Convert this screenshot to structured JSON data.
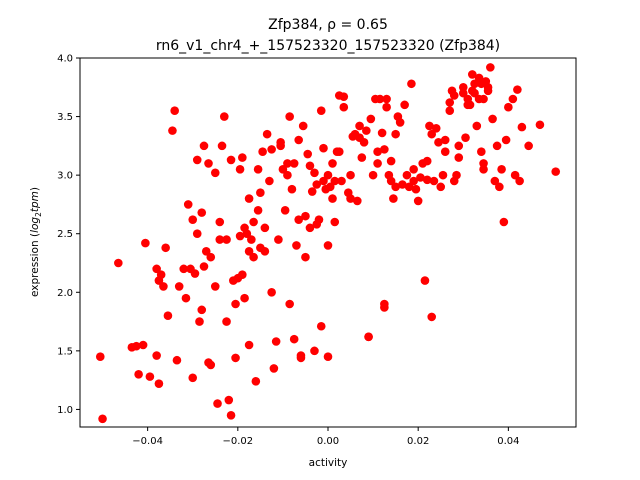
{
  "chart_data": {
    "type": "scatter",
    "title": "Zfp384, ρ = 0.65",
    "subtitle": "rn6_v1_chr4_+_157523320_157523320 (Zfp384)",
    "xlabel": "activity",
    "ylabel_prefix": "expression (",
    "ylabel_math": "log",
    "ylabel_sub": "2",
    "ylabel_math2": "tpm",
    "ylabel_suffix": ")",
    "xlim": [
      -0.055,
      0.055
    ],
    "ylim": [
      0.85,
      4.0
    ],
    "xticks": [
      -0.04,
      -0.02,
      0.0,
      0.02,
      0.04
    ],
    "xtick_labels": [
      "−0.04",
      "−0.02",
      "0.00",
      "0.02",
      "0.04"
    ],
    "yticks": [
      1.0,
      1.5,
      2.0,
      2.5,
      3.0,
      3.5,
      4.0
    ],
    "ytick_labels": [
      "1.0",
      "1.5",
      "2.0",
      "2.5",
      "3.0",
      "3.5",
      "4.0"
    ],
    "grid": false,
    "legend": "none",
    "marker_color": "#ff0000",
    "points": [
      [
        -0.0505,
        1.45
      ],
      [
        -0.05,
        0.92
      ],
      [
        -0.0465,
        2.25
      ],
      [
        -0.0435,
        1.53
      ],
      [
        -0.0425,
        1.54
      ],
      [
        -0.042,
        1.3
      ],
      [
        -0.041,
        1.55
      ],
      [
        -0.0405,
        2.42
      ],
      [
        -0.0395,
        1.28
      ],
      [
        -0.038,
        1.46
      ],
      [
        -0.0375,
        1.22
      ],
      [
        -0.038,
        2.2
      ],
      [
        -0.0375,
        2.1
      ],
      [
        -0.037,
        2.15
      ],
      [
        -0.0365,
        2.05
      ],
      [
        -0.036,
        2.38
      ],
      [
        -0.0355,
        1.8
      ],
      [
        -0.0345,
        3.38
      ],
      [
        -0.034,
        3.55
      ],
      [
        -0.0335,
        1.42
      ],
      [
        -0.033,
        2.05
      ],
      [
        -0.032,
        2.2
      ],
      [
        -0.0315,
        1.95
      ],
      [
        -0.031,
        2.75
      ],
      [
        -0.0305,
        2.2
      ],
      [
        -0.03,
        1.27
      ],
      [
        -0.03,
        2.62
      ],
      [
        -0.0295,
        2.16
      ],
      [
        -0.029,
        2.5
      ],
      [
        -0.029,
        3.13
      ],
      [
        -0.0285,
        1.75
      ],
      [
        -0.028,
        2.68
      ],
      [
        -0.028,
        1.85
      ],
      [
        -0.0275,
        2.22
      ],
      [
        -0.0275,
        3.25
      ],
      [
        -0.027,
        2.35
      ],
      [
        -0.0265,
        1.4
      ],
      [
        -0.0265,
        3.1
      ],
      [
        -0.026,
        1.38
      ],
      [
        -0.026,
        2.3
      ],
      [
        -0.025,
        2.05
      ],
      [
        -0.025,
        3.02
      ],
      [
        -0.0245,
        1.05
      ],
      [
        -0.024,
        2.45
      ],
      [
        -0.024,
        2.6
      ],
      [
        -0.0235,
        3.25
      ],
      [
        -0.023,
        3.5
      ],
      [
        -0.0225,
        1.75
      ],
      [
        -0.0225,
        2.45
      ],
      [
        -0.022,
        1.08
      ],
      [
        -0.0215,
        0.95
      ],
      [
        -0.0215,
        3.13
      ],
      [
        -0.021,
        2.1
      ],
      [
        -0.0205,
        1.44
      ],
      [
        -0.0205,
        1.9
      ],
      [
        -0.02,
        2.12
      ],
      [
        -0.0195,
        2.48
      ],
      [
        -0.0195,
        3.05
      ],
      [
        -0.019,
        3.15
      ],
      [
        -0.019,
        2.15
      ],
      [
        -0.0185,
        1.95
      ],
      [
        -0.0185,
        2.55
      ],
      [
        -0.018,
        2.5
      ],
      [
        -0.0175,
        2.35
      ],
      [
        -0.0175,
        2.8
      ],
      [
        -0.0175,
        1.55
      ],
      [
        -0.017,
        2.45
      ],
      [
        -0.0165,
        2.6
      ],
      [
        -0.0165,
        2.3
      ],
      [
        -0.016,
        1.24
      ],
      [
        -0.0155,
        2.7
      ],
      [
        -0.0155,
        3.05
      ],
      [
        -0.015,
        2.38
      ],
      [
        -0.015,
        2.85
      ],
      [
        -0.0145,
        3.2
      ],
      [
        -0.014,
        2.55
      ],
      [
        -0.014,
        2.35
      ],
      [
        -0.0135,
        3.35
      ],
      [
        -0.013,
        2.95
      ],
      [
        -0.0125,
        3.22
      ],
      [
        -0.0125,
        2.0
      ],
      [
        -0.012,
        1.35
      ],
      [
        -0.0115,
        1.58
      ],
      [
        -0.011,
        2.45
      ],
      [
        -0.0105,
        3.25
      ],
      [
        -0.0105,
        3.28
      ],
      [
        -0.01,
        3.05
      ],
      [
        -0.0095,
        2.7
      ],
      [
        -0.009,
        3.0
      ],
      [
        -0.009,
        3.1
      ],
      [
        -0.0085,
        3.5
      ],
      [
        -0.0085,
        1.9
      ],
      [
        -0.008,
        2.88
      ],
      [
        -0.0075,
        3.1
      ],
      [
        -0.0075,
        1.6
      ],
      [
        -0.007,
        2.4
      ],
      [
        -0.0065,
        3.3
      ],
      [
        -0.0065,
        2.62
      ],
      [
        -0.006,
        1.46
      ],
      [
        -0.006,
        1.44
      ],
      [
        -0.0055,
        3.42
      ],
      [
        -0.005,
        2.65
      ],
      [
        -0.005,
        2.3
      ],
      [
        -0.0045,
        3.18
      ],
      [
        -0.004,
        3.08
      ],
      [
        -0.004,
        2.55
      ],
      [
        -0.0035,
        2.86
      ],
      [
        -0.003,
        1.5
      ],
      [
        -0.003,
        3.02
      ],
      [
        -0.0025,
        2.92
      ],
      [
        -0.0025,
        2.58
      ],
      [
        -0.002,
        2.62
      ],
      [
        -0.0015,
        1.71
      ],
      [
        -0.0015,
        3.55
      ],
      [
        -0.001,
        2.95
      ],
      [
        -0.001,
        3.23
      ],
      [
        -0.0005,
        2.88
      ],
      [
        0.0,
        3.0
      ],
      [
        0.0,
        1.45
      ],
      [
        0.0,
        2.4
      ],
      [
        0.0005,
        2.9
      ],
      [
        0.001,
        2.8
      ],
      [
        0.001,
        3.1
      ],
      [
        0.0015,
        2.95
      ],
      [
        0.0015,
        2.6
      ],
      [
        0.002,
        3.2
      ],
      [
        0.0025,
        3.68
      ],
      [
        0.0025,
        3.2
      ],
      [
        0.003,
        2.95
      ],
      [
        0.0035,
        3.67
      ],
      [
        0.0035,
        3.58
      ],
      [
        0.0045,
        2.85
      ],
      [
        0.005,
        2.8
      ],
      [
        0.005,
        3.0
      ],
      [
        0.0055,
        3.33
      ],
      [
        0.006,
        3.35
      ],
      [
        0.0065,
        2.78
      ],
      [
        0.007,
        3.32
      ],
      [
        0.007,
        3.42
      ],
      [
        0.0075,
        3.15
      ],
      [
        0.008,
        3.28
      ],
      [
        0.0085,
        3.38
      ],
      [
        0.009,
        1.62
      ],
      [
        0.009,
        1.62
      ],
      [
        0.0095,
        3.48
      ],
      [
        0.01,
        3.0
      ],
      [
        0.0105,
        3.65
      ],
      [
        0.011,
        3.2
      ],
      [
        0.011,
        3.1
      ],
      [
        0.0115,
        3.65
      ],
      [
        0.012,
        3.36
      ],
      [
        0.0125,
        3.22
      ],
      [
        0.0125,
        1.87
      ],
      [
        0.0125,
        1.9
      ],
      [
        0.013,
        3.65
      ],
      [
        0.013,
        3.58
      ],
      [
        0.0135,
        3.0
      ],
      [
        0.014,
        3.12
      ],
      [
        0.014,
        2.95
      ],
      [
        0.0145,
        2.8
      ],
      [
        0.015,
        2.9
      ],
      [
        0.015,
        3.35
      ],
      [
        0.0155,
        3.5
      ],
      [
        0.016,
        3.45
      ],
      [
        0.0165,
        2.92
      ],
      [
        0.017,
        3.6
      ],
      [
        0.0175,
        3.0
      ],
      [
        0.018,
        2.9
      ],
      [
        0.0185,
        3.78
      ],
      [
        0.019,
        3.05
      ],
      [
        0.019,
        2.95
      ],
      [
        0.0195,
        2.88
      ],
      [
        0.02,
        2.78
      ],
      [
        0.0205,
        2.98
      ],
      [
        0.021,
        3.1
      ],
      [
        0.0215,
        2.1
      ],
      [
        0.022,
        2.96
      ],
      [
        0.022,
        3.12
      ],
      [
        0.0225,
        3.42
      ],
      [
        0.023,
        1.79
      ],
      [
        0.023,
        3.35
      ],
      [
        0.0235,
        2.95
      ],
      [
        0.024,
        3.4
      ],
      [
        0.0245,
        3.28
      ],
      [
        0.025,
        2.9
      ],
      [
        0.0255,
        3.0
      ],
      [
        0.026,
        3.3
      ],
      [
        0.026,
        3.2
      ],
      [
        0.027,
        3.55
      ],
      [
        0.027,
        3.62
      ],
      [
        0.0275,
        3.72
      ],
      [
        0.028,
        3.68
      ],
      [
        0.028,
        2.95
      ],
      [
        0.0285,
        3.0
      ],
      [
        0.029,
        3.15
      ],
      [
        0.029,
        3.25
      ],
      [
        0.03,
        3.7
      ],
      [
        0.03,
        3.75
      ],
      [
        0.0305,
        3.32
      ],
      [
        0.031,
        3.65
      ],
      [
        0.031,
        3.6
      ],
      [
        0.0315,
        3.6
      ],
      [
        0.032,
        3.72
      ],
      [
        0.032,
        3.86
      ],
      [
        0.0325,
        3.7
      ],
      [
        0.033,
        3.42
      ],
      [
        0.0335,
        3.65
      ],
      [
        0.034,
        3.78
      ],
      [
        0.034,
        3.2
      ],
      [
        0.0345,
        3.1
      ],
      [
        0.0345,
        3.05
      ],
      [
        0.035,
        3.8
      ],
      [
        0.0355,
        3.72
      ],
      [
        0.036,
        3.92
      ],
      [
        0.0365,
        3.48
      ],
      [
        0.037,
        2.95
      ],
      [
        0.0375,
        3.25
      ],
      [
        0.038,
        2.9
      ],
      [
        0.0385,
        3.05
      ],
      [
        0.039,
        2.6
      ],
      [
        0.0395,
        3.3
      ],
      [
        0.04,
        3.58
      ],
      [
        0.041,
        3.65
      ],
      [
        0.0415,
        3.0
      ],
      [
        0.042,
        3.73
      ],
      [
        0.0425,
        2.95
      ],
      [
        0.043,
        3.41
      ],
      [
        0.0445,
        3.25
      ],
      [
        0.047,
        3.43
      ],
      [
        0.0505,
        3.03
      ],
      [
        0.0325,
        3.78
      ],
      [
        0.0335,
        3.83
      ],
      [
        0.0345,
        3.65
      ],
      [
        0.0355,
        3.75
      ]
    ]
  }
}
